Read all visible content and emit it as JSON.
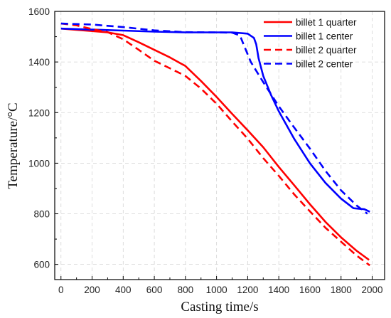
{
  "chart_data": {
    "type": "line",
    "title": "",
    "xlabel": "Casting time/s",
    "ylabel": "Temperature/°C",
    "xlim": [
      -40,
      2080
    ],
    "ylim": [
      540,
      1600
    ],
    "xticks": [
      0,
      200,
      400,
      600,
      800,
      1000,
      1200,
      1400,
      1600,
      1800,
      2000
    ],
    "yticks": [
      600,
      800,
      1000,
      1200,
      1400,
      1600
    ],
    "grid": true,
    "legend_position": "top-right",
    "series": [
      {
        "name": "billet 1 quarter",
        "color": "#ff0000",
        "dash": "solid",
        "x": [
          0,
          100,
          200,
          300,
          400,
          500,
          600,
          700,
          800,
          900,
          1000,
          1100,
          1200,
          1300,
          1400,
          1500,
          1600,
          1700,
          1800,
          1900,
          1980
        ],
        "y": [
          1532,
          1527,
          1522,
          1517,
          1506,
          1478,
          1448,
          1418,
          1384,
          1325,
          1262,
          1195,
          1130,
          1063,
          985,
          912,
          838,
          768,
          707,
          654,
          618
        ]
      },
      {
        "name": "billet 1 center",
        "color": "#0000ff",
        "dash": "solid",
        "x": [
          0,
          200,
          400,
          600,
          800,
          1000,
          1100,
          1200,
          1240,
          1255,
          1270,
          1300,
          1350,
          1400,
          1500,
          1600,
          1700,
          1800,
          1880,
          1950,
          1985
        ],
        "y": [
          1532,
          1528,
          1524,
          1520,
          1517,
          1517,
          1517,
          1512,
          1495,
          1470,
          1415,
          1345,
          1270,
          1205,
          1095,
          1000,
          922,
          860,
          822,
          818,
          808
        ]
      },
      {
        "name": "billet 2 quarter",
        "color": "#ff0000",
        "dash": "dashed",
        "x": [
          0,
          100,
          200,
          300,
          400,
          500,
          600,
          700,
          800,
          900,
          1000,
          1100,
          1200,
          1300,
          1400,
          1500,
          1600,
          1700,
          1800,
          1900,
          1985
        ],
        "y": [
          1552,
          1545,
          1530,
          1518,
          1490,
          1448,
          1405,
          1375,
          1345,
          1295,
          1235,
          1165,
          1097,
          1020,
          950,
          876,
          810,
          745,
          690,
          635,
          596
        ]
      },
      {
        "name": "billet 2 center",
        "color": "#0000ff",
        "dash": "dashed",
        "x": [
          0,
          200,
          400,
          600,
          800,
          1000,
          1100,
          1150,
          1180,
          1220,
          1300,
          1400,
          1500,
          1600,
          1700,
          1800,
          1900,
          1970
        ],
        "y": [
          1552,
          1548,
          1538,
          1525,
          1518,
          1517,
          1516,
          1505,
          1460,
          1400,
          1320,
          1225,
          1140,
          1058,
          970,
          893,
          833,
          800
        ]
      }
    ]
  }
}
